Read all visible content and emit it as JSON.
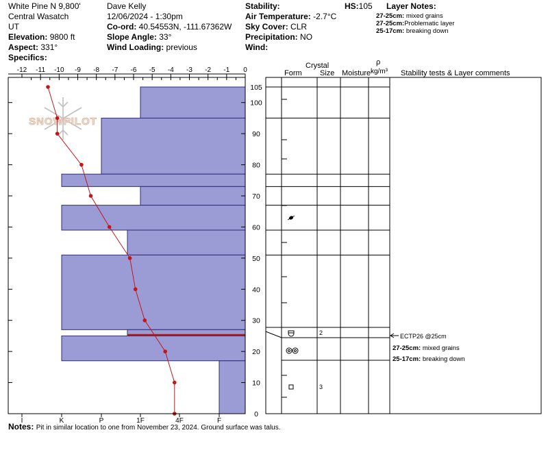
{
  "header": {
    "location": "White Pine N 9,800'",
    "region": "Central Wasatch",
    "state": "UT",
    "elevation_label": "Elevation:",
    "elevation_value": "9800 ft",
    "aspect_label": "Aspect:",
    "aspect_value": "331°",
    "specifics_label": "Specifics:",
    "observer": "Dave Kelly",
    "datetime": "12/06/2024 - 1:30pm",
    "coord_label": "Co-ord:",
    "coord_value": "40.54553N, -111.67362W",
    "slope_label": "Slope Angle:",
    "slope_value": "33°",
    "wind_loading_label": "Wind Loading:",
    "wind_loading_value": "previous",
    "stability_label": "Stability:",
    "air_temp_label": "Air Temperature:",
    "air_temp_value": "-2.7°C",
    "sky_label": "Sky Cover:",
    "sky_value": "CLR",
    "precip_label": "Precipitation:",
    "precip_value": "NO",
    "wind_label": "Wind:",
    "hs_label": "HS:",
    "hs_value": "105",
    "layer_notes_label": "Layer Notes:",
    "layer_notes": [
      {
        "range": "27-25cm:",
        "text": "mixed grains"
      },
      {
        "range": "27-25cm:",
        "text": "Problematic layer"
      },
      {
        "range": "25-17cm:",
        "text": "breaking down"
      }
    ]
  },
  "watermark": "SNOWPILOT",
  "notes_label": "Notes:",
  "notes_text": "Pit in similar location to one from November 23, 2024. Ground surface was talus.",
  "chart_data": {
    "type": "snow-profile",
    "temp_axis_ticks": [
      "-12",
      "-11",
      "-10",
      "-9",
      "-8",
      "-7",
      "-6",
      "-5",
      "-4",
      "-3",
      "-2",
      "-1",
      "0"
    ],
    "hardness_ticks": [
      "I",
      "K",
      "P",
      "1F",
      "4F",
      "F"
    ],
    "height_ticks": [
      "0",
      "10",
      "20",
      "30",
      "40",
      "50",
      "60",
      "70",
      "80",
      "90",
      "100",
      "105"
    ],
    "height_range": [
      0,
      105
    ],
    "temp_range": [
      -12,
      0
    ],
    "hardness_layers": [
      {
        "top": 105,
        "bottom": 95,
        "hardness": "1F"
      },
      {
        "top": 95,
        "bottom": 77,
        "hardness": "P+"
      },
      {
        "top": 77,
        "bottom": 73,
        "hardness": "K"
      },
      {
        "top": 73,
        "bottom": 67,
        "hardness": "1F"
      },
      {
        "top": 67,
        "bottom": 59,
        "hardness": "K"
      },
      {
        "top": 59,
        "bottom": 51,
        "hardness": "1F+"
      },
      {
        "top": 51,
        "bottom": 27,
        "hardness": "K"
      },
      {
        "top": 27,
        "bottom": 25,
        "hardness": "1F+"
      },
      {
        "top": 25,
        "bottom": 17,
        "hardness": "K"
      },
      {
        "top": 17,
        "bottom": 0,
        "hardness": "F+"
      }
    ],
    "temperature_profile": [
      {
        "height": 105,
        "temp": -10.6
      },
      {
        "height": 95,
        "temp": -10.1
      },
      {
        "height": 90,
        "temp": -10.1
      },
      {
        "height": 80,
        "temp": -8.8
      },
      {
        "height": 70,
        "temp": -8.3
      },
      {
        "height": 60,
        "temp": -7.3
      },
      {
        "height": 50,
        "temp": -6.2
      },
      {
        "height": 40,
        "temp": -5.9
      },
      {
        "height": 30,
        "temp": -5.4
      },
      {
        "height": 20,
        "temp": -4.3
      },
      {
        "height": 10,
        "temp": -3.8
      },
      {
        "height": 0,
        "temp": -3.8
      }
    ],
    "column_headers": {
      "crystal": "Crystal",
      "form": "Form",
      "size": "Size",
      "moisture": "Moisture",
      "rho": "ρ",
      "density_unit": "kg/m³",
      "comments": "Stability tests & Layer comments"
    },
    "boundaries": [
      105,
      95,
      77,
      73,
      67,
      59,
      51
    ],
    "crystals": [
      {
        "height": 63,
        "form": "melt-forms",
        "size": ""
      },
      {
        "height": 26,
        "form": "faceted-rounded",
        "size": "2"
      },
      {
        "height": 20,
        "form": "mixed-forms",
        "size": ""
      },
      {
        "height": 9,
        "form": "faceted",
        "size": "3"
      }
    ],
    "stability_test": {
      "height": 25,
      "label": "ECTP26 @25cm"
    },
    "layer_comments": [
      {
        "range": "27-25cm:",
        "text": "mixed grains"
      },
      {
        "range": "25-17cm:",
        "text": "breaking down"
      }
    ]
  }
}
